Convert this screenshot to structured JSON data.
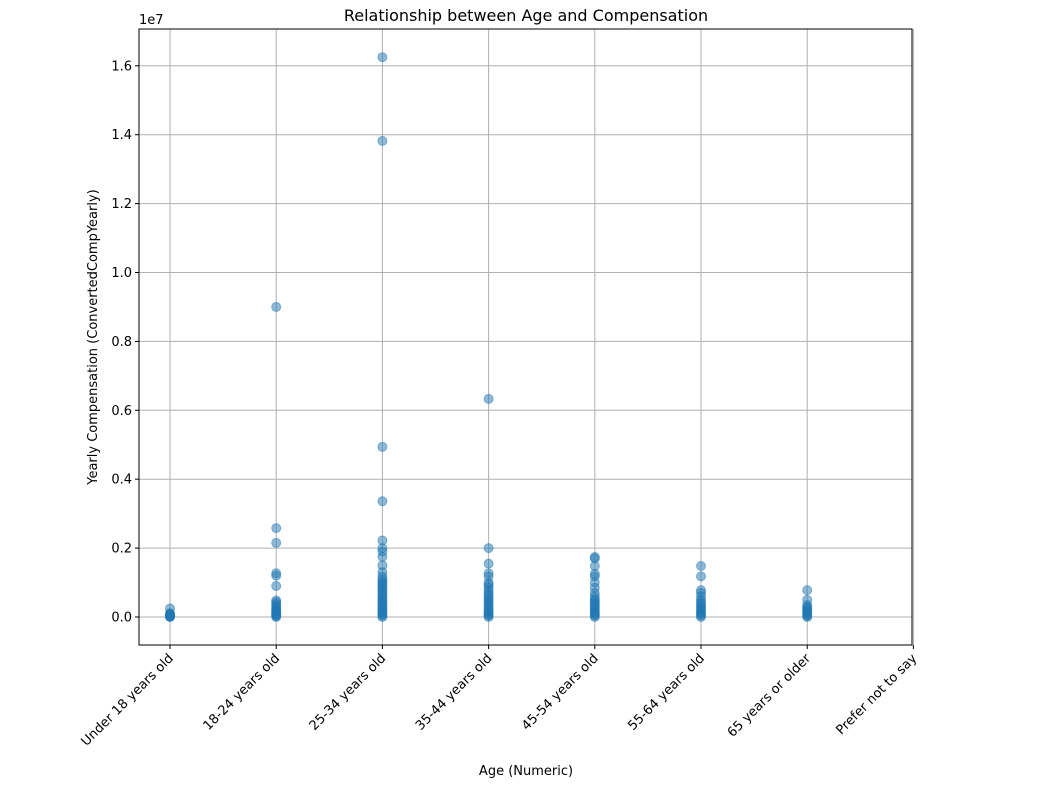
{
  "chart_data": {
    "type": "scatter",
    "title": "Relationship between Age and Compensation",
    "xlabel": "Age (Numeric)",
    "ylabel": "Yearly Compensation (ConvertedCompYearly)",
    "y_offset_label": "1e7",
    "y_scale_factor": 10000000,
    "categories": [
      "Under 18 years old",
      "18-24 years old",
      "25-34 years old",
      "35-44 years old",
      "45-54 years old",
      "55-64 years old",
      "65 years or older",
      "Prefer not to say"
    ],
    "y_ticks": [
      0.0,
      0.2,
      0.4,
      0.6,
      0.8,
      1.0,
      1.2,
      1.4,
      1.6
    ],
    "y_tick_labels": [
      "0.0",
      "0.2",
      "0.4",
      "0.6",
      "0.8",
      "1.0",
      "1.2",
      "1.4",
      "1.6"
    ],
    "ylim": [
      -800000,
      17100000
    ],
    "grid": true,
    "point_color": "#1f77b4",
    "point_alpha": 0.5,
    "series": [
      {
        "values": [
          [
            "Under 18 years old",
            0
          ],
          [
            "Under 18 years old",
            10000
          ],
          [
            "Under 18 years old",
            20000
          ],
          [
            "Under 18 years old",
            35000
          ],
          [
            "Under 18 years old",
            50000
          ],
          [
            "Under 18 years old",
            70000
          ],
          [
            "Under 18 years old",
            90000
          ],
          [
            "Under 18 years old",
            110000
          ],
          [
            "Under 18 years old",
            250000
          ],
          [
            "18-24 years old",
            0
          ],
          [
            "18-24 years old",
            25000
          ],
          [
            "18-24 years old",
            50000
          ],
          [
            "18-24 years old",
            80000
          ],
          [
            "18-24 years old",
            110000
          ],
          [
            "18-24 years old",
            140000
          ],
          [
            "18-24 years old",
            170000
          ],
          [
            "18-24 years old",
            200000
          ],
          [
            "18-24 years old",
            240000
          ],
          [
            "18-24 years old",
            280000
          ],
          [
            "18-24 years old",
            330000
          ],
          [
            "18-24 years old",
            380000
          ],
          [
            "18-24 years old",
            430000
          ],
          [
            "18-24 years old",
            480000
          ],
          [
            "18-24 years old",
            900000
          ],
          [
            "18-24 years old",
            1200000
          ],
          [
            "18-24 years old",
            1270000
          ],
          [
            "18-24 years old",
            2150000
          ],
          [
            "18-24 years old",
            2580000
          ],
          [
            "18-24 years old",
            9000000
          ],
          [
            "25-34 years old",
            0
          ],
          [
            "25-34 years old",
            40000
          ],
          [
            "25-34 years old",
            80000
          ],
          [
            "25-34 years old",
            120000
          ],
          [
            "25-34 years old",
            160000
          ],
          [
            "25-34 years old",
            200000
          ],
          [
            "25-34 years old",
            250000
          ],
          [
            "25-34 years old",
            300000
          ],
          [
            "25-34 years old",
            350000
          ],
          [
            "25-34 years old",
            400000
          ],
          [
            "25-34 years old",
            450000
          ],
          [
            "25-34 years old",
            500000
          ],
          [
            "25-34 years old",
            560000
          ],
          [
            "25-34 years old",
            620000
          ],
          [
            "25-34 years old",
            680000
          ],
          [
            "25-34 years old",
            740000
          ],
          [
            "25-34 years old",
            800000
          ],
          [
            "25-34 years old",
            860000
          ],
          [
            "25-34 years old",
            920000
          ],
          [
            "25-34 years old",
            980000
          ],
          [
            "25-34 years old",
            1040000
          ],
          [
            "25-34 years old",
            1100000
          ],
          [
            "25-34 years old",
            1180000
          ],
          [
            "25-34 years old",
            1300000
          ],
          [
            "25-34 years old",
            1500000
          ],
          [
            "25-34 years old",
            1750000
          ],
          [
            "25-34 years old",
            1900000
          ],
          [
            "25-34 years old",
            2000000
          ],
          [
            "25-34 years old",
            2220000
          ],
          [
            "25-34 years old",
            3360000
          ],
          [
            "25-34 years old",
            4940000
          ],
          [
            "25-34 years old",
            13820000
          ],
          [
            "25-34 years old",
            16250000
          ],
          [
            "35-44 years old",
            0
          ],
          [
            "35-44 years old",
            40000
          ],
          [
            "35-44 years old",
            80000
          ],
          [
            "35-44 years old",
            120000
          ],
          [
            "35-44 years old",
            170000
          ],
          [
            "35-44 years old",
            220000
          ],
          [
            "35-44 years old",
            280000
          ],
          [
            "35-44 years old",
            340000
          ],
          [
            "35-44 years old",
            400000
          ],
          [
            "35-44 years old",
            460000
          ],
          [
            "35-44 years old",
            520000
          ],
          [
            "35-44 years old",
            580000
          ],
          [
            "35-44 years old",
            640000
          ],
          [
            "35-44 years old",
            700000
          ],
          [
            "35-44 years old",
            780000
          ],
          [
            "35-44 years old",
            860000
          ],
          [
            "35-44 years old",
            940000
          ],
          [
            "35-44 years old",
            1000000
          ],
          [
            "35-44 years old",
            1180000
          ],
          [
            "35-44 years old",
            1270000
          ],
          [
            "35-44 years old",
            1550000
          ],
          [
            "35-44 years old",
            2000000
          ],
          [
            "35-44 years old",
            6330000
          ],
          [
            "45-54 years old",
            0
          ],
          [
            "45-54 years old",
            40000
          ],
          [
            "45-54 years old",
            80000
          ],
          [
            "45-54 years old",
            120000
          ],
          [
            "45-54 years old",
            170000
          ],
          [
            "45-54 years old",
            220000
          ],
          [
            "45-54 years old",
            270000
          ],
          [
            "45-54 years old",
            320000
          ],
          [
            "45-54 years old",
            370000
          ],
          [
            "45-54 years old",
            420000
          ],
          [
            "45-54 years old",
            470000
          ],
          [
            "45-54 years old",
            520000
          ],
          [
            "45-54 years old",
            600000
          ],
          [
            "45-54 years old",
            700000
          ],
          [
            "45-54 years old",
            850000
          ],
          [
            "45-54 years old",
            1000000
          ],
          [
            "45-54 years old",
            1180000
          ],
          [
            "45-54 years old",
            1250000
          ],
          [
            "45-54 years old",
            1480000
          ],
          [
            "45-54 years old",
            1700000
          ],
          [
            "45-54 years old",
            1740000
          ],
          [
            "55-64 years old",
            0
          ],
          [
            "55-64 years old",
            40000
          ],
          [
            "55-64 years old",
            80000
          ],
          [
            "55-64 years old",
            120000
          ],
          [
            "55-64 years old",
            170000
          ],
          [
            "55-64 years old",
            220000
          ],
          [
            "55-64 years old",
            270000
          ],
          [
            "55-64 years old",
            320000
          ],
          [
            "55-64 years old",
            380000
          ],
          [
            "55-64 years old",
            440000
          ],
          [
            "55-64 years old",
            500000
          ],
          [
            "55-64 years old",
            600000
          ],
          [
            "55-64 years old",
            700000
          ],
          [
            "55-64 years old",
            780000
          ],
          [
            "55-64 years old",
            1180000
          ],
          [
            "55-64 years old",
            1480000
          ],
          [
            "65 years or older",
            0
          ],
          [
            "65 years or older",
            30000
          ],
          [
            "65 years or older",
            60000
          ],
          [
            "65 years or older",
            100000
          ],
          [
            "65 years or older",
            140000
          ],
          [
            "65 years or older",
            180000
          ],
          [
            "65 years or older",
            220000
          ],
          [
            "65 years or older",
            260000
          ],
          [
            "65 years or older",
            300000
          ],
          [
            "65 years or older",
            350000
          ],
          [
            "65 years or older",
            500000
          ],
          [
            "65 years or older",
            780000
          ]
        ]
      }
    ]
  }
}
